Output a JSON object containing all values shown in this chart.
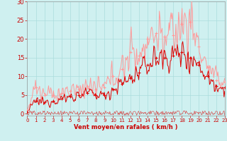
{
  "xlabel": "Vent moyen/en rafales ( km/h )",
  "bg_color": "#cff0f0",
  "grid_color": "#aadddd",
  "line_color_avg": "#dd0000",
  "line_color_gust": "#ff9999",
  "line_color_dir": "#dd0000",
  "xlim": [
    0,
    23
  ],
  "ylim": [
    -0.5,
    30
  ],
  "yticks": [
    0,
    5,
    10,
    15,
    20,
    25,
    30
  ],
  "xticks": [
    0,
    1,
    2,
    3,
    4,
    5,
    6,
    7,
    8,
    9,
    10,
    11,
    12,
    13,
    14,
    15,
    16,
    17,
    18,
    19,
    20,
    21,
    22,
    23
  ],
  "xlabel_fontsize": 6,
  "tick_fontsize_x": 5,
  "tick_fontsize_y": 6,
  "seed": 12345,
  "n_points": 276,
  "base_avg": [
    0.5,
    3.5,
    3.0,
    3.5,
    4.0,
    4.5,
    5.0,
    5.5,
    5.0,
    5.0,
    6.5,
    8.0,
    9.5,
    11.0,
    13.0,
    15.0,
    15.0,
    15.5,
    16.5,
    15.0,
    13.0,
    10.0,
    7.5,
    7.0
  ],
  "base_gust": [
    1.0,
    7.0,
    5.0,
    5.0,
    5.5,
    6.0,
    6.5,
    7.5,
    6.5,
    7.0,
    10.0,
    12.0,
    16.5,
    15.5,
    20.0,
    21.5,
    20.5,
    21.0,
    24.0,
    24.5,
    18.0,
    12.5,
    9.0,
    8.5
  ],
  "marker_hours_avg": [
    0,
    1,
    2,
    3,
    4,
    5,
    6,
    7,
    8,
    9,
    10,
    11,
    12,
    13,
    14,
    15,
    16,
    17,
    18,
    19,
    20,
    21,
    22,
    23
  ],
  "marker_hours_gust": [
    0,
    1,
    2,
    3,
    4,
    5,
    6,
    7,
    8,
    9,
    10,
    11,
    12,
    13,
    14,
    15,
    16,
    17,
    18,
    19,
    20,
    21,
    22,
    23
  ]
}
